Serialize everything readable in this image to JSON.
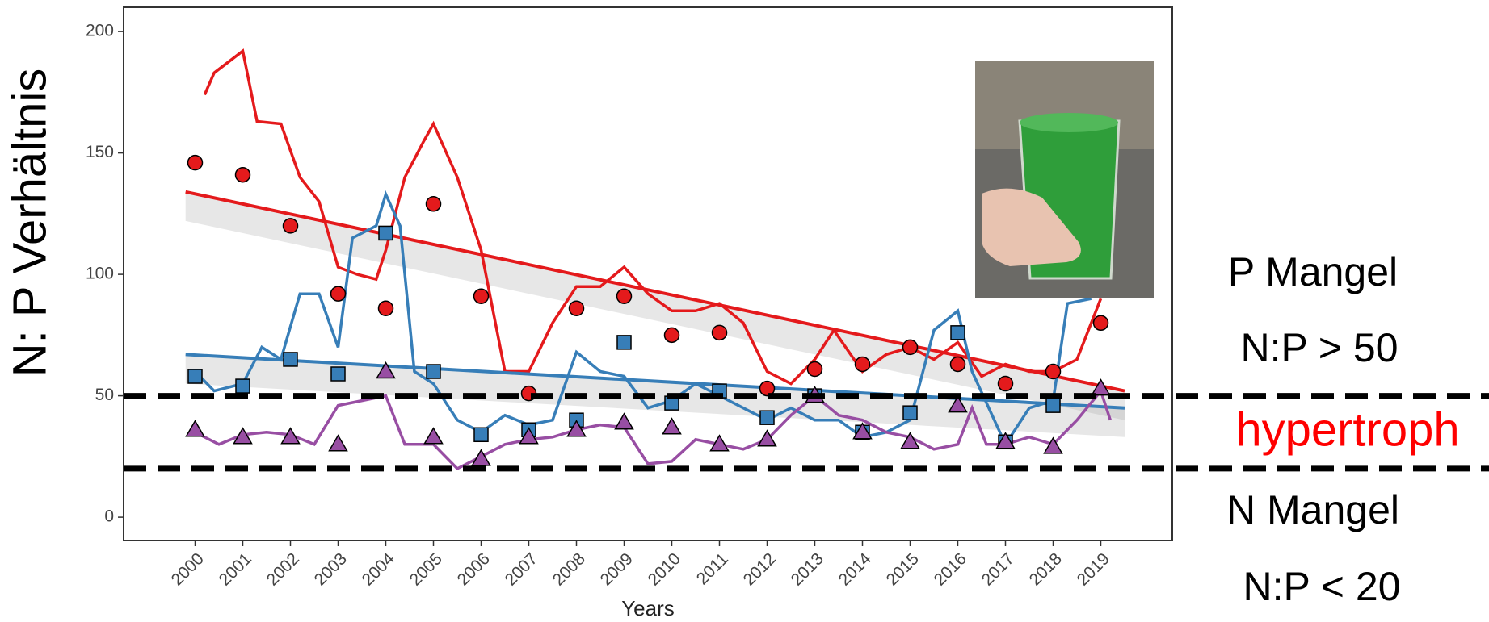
{
  "chart_data": {
    "type": "scatter",
    "y_label": "N: P Verhältnis",
    "x_label": "Years",
    "x": [
      2000,
      2001,
      2002,
      2003,
      2004,
      2005,
      2006,
      2007,
      2008,
      2009,
      2010,
      2011,
      2012,
      2013,
      2014,
      2015,
      2016,
      2017,
      2018,
      2019
    ],
    "xlim": [
      1998.5,
      2020.5
    ],
    "xticks": [
      2000,
      2001,
      2002,
      2003,
      2004,
      2005,
      2006,
      2007,
      2008,
      2009,
      2010,
      2011,
      2012,
      2013,
      2014,
      2015,
      2016,
      2017,
      2018,
      2019
    ],
    "ylim": [
      -9.6,
      210
    ],
    "yticks": [
      0,
      50,
      100,
      150,
      200
    ],
    "thresholds": [
      50,
      20
    ],
    "series": [
      {
        "color": "#e41a1c",
        "marker": "circle",
        "values": [
          146,
          141,
          120,
          92,
          86,
          129,
          91,
          51,
          86,
          91,
          75,
          76,
          53,
          61,
          63,
          70,
          63,
          55,
          60,
          80
        ],
        "smooth_x": [
          2000.2,
          2000.4,
          2001,
          2001.3,
          2001.8,
          2002.2,
          2002.6,
          2003,
          2003.4,
          2003.8,
          2004,
          2004.4,
          2004.8,
          2005,
          2005.5,
          2006,
          2006.5,
          2007,
          2007.5,
          2008,
          2008.5,
          2009,
          2009.5,
          2010,
          2010.5,
          2011,
          2011.5,
          2012,
          2012.5,
          2013,
          2013.4,
          2014,
          2014.5,
          2015,
          2015.5,
          2016,
          2016.5,
          2017,
          2017.5,
          2018,
          2018.5,
          2019
        ],
        "smooth": [
          174,
          183,
          192,
          163,
          162,
          140,
          130,
          103,
          100,
          98,
          110,
          140,
          155,
          162,
          140,
          110,
          60,
          60,
          80,
          95,
          95,
          103,
          92,
          85,
          85,
          88,
          80,
          60,
          55,
          65,
          77,
          60,
          67,
          70,
          65,
          72,
          58,
          63,
          60,
          60,
          65,
          90
        ],
        "trend_x": [
          1999.8,
          2019.5
        ],
        "trend": [
          134,
          52
        ]
      },
      {
        "color": "#377eb8",
        "marker": "square",
        "values": [
          58,
          54,
          65,
          59,
          117,
          60,
          34,
          36,
          40,
          72,
          47,
          52,
          41,
          50,
          35,
          43,
          76,
          31,
          46,
          null
        ],
        "smooth_x": [
          2000,
          2000.4,
          2001,
          2001.4,
          2001.8,
          2002.2,
          2002.6,
          2003,
          2003.3,
          2003.8,
          2004,
          2004.3,
          2004.6,
          2005,
          2005.5,
          2006,
          2006.5,
          2007,
          2007.5,
          2008,
          2008.5,
          2009,
          2009.5,
          2010,
          2010.5,
          2011,
          2011.5,
          2012,
          2012.5,
          2013,
          2013.5,
          2014,
          2014.5,
          2015,
          2015.5,
          2016,
          2016.3,
          2017,
          2017.5,
          2018,
          2018.3,
          2018.8
        ],
        "smooth": [
          60,
          52,
          55,
          70,
          65,
          92,
          92,
          70,
          115,
          120,
          133,
          120,
          60,
          55,
          40,
          35,
          42,
          38,
          40,
          68,
          60,
          58,
          45,
          48,
          55,
          50,
          45,
          40,
          45,
          40,
          40,
          33,
          35,
          40,
          77,
          85,
          60,
          30,
          45,
          48,
          88,
          90
        ],
        "trend_x": [
          1999.8,
          2019.5
        ],
        "trend": [
          67,
          45
        ]
      },
      {
        "color": "#984ea3",
        "marker": "triangle",
        "values": [
          36,
          33,
          33,
          30,
          60,
          33,
          24,
          33,
          36,
          39,
          37,
          30,
          32,
          50,
          35,
          31,
          46,
          31,
          29,
          53
        ],
        "smooth_x": [
          2000,
          2000.5,
          2001,
          2001.5,
          2002,
          2002.5,
          2003,
          2003.5,
          2004,
          2004.4,
          2005,
          2005.5,
          2006,
          2006.5,
          2007,
          2007.5,
          2008,
          2008.5,
          2009,
          2009.5,
          2010,
          2010.5,
          2011,
          2011.5,
          2012,
          2012.5,
          2013,
          2013.5,
          2014,
          2014.5,
          2015,
          2015.5,
          2016,
          2016.3,
          2016.6,
          2017,
          2017.5,
          2018,
          2018.5,
          2019,
          2019.2
        ],
        "smooth": [
          35,
          30,
          34,
          35,
          34,
          30,
          46,
          48,
          50,
          30,
          30,
          20,
          25,
          30,
          32,
          33,
          36,
          38,
          37,
          22,
          23,
          32,
          30,
          28,
          32,
          42,
          50,
          42,
          40,
          35,
          33,
          28,
          30,
          45,
          30,
          30,
          33,
          30,
          40,
          52,
          40
        ]
      }
    ],
    "annotations": [
      "P Mangel",
      "N:P > 50",
      "hypertroph",
      "N Mangel",
      "N:P < 20"
    ]
  }
}
